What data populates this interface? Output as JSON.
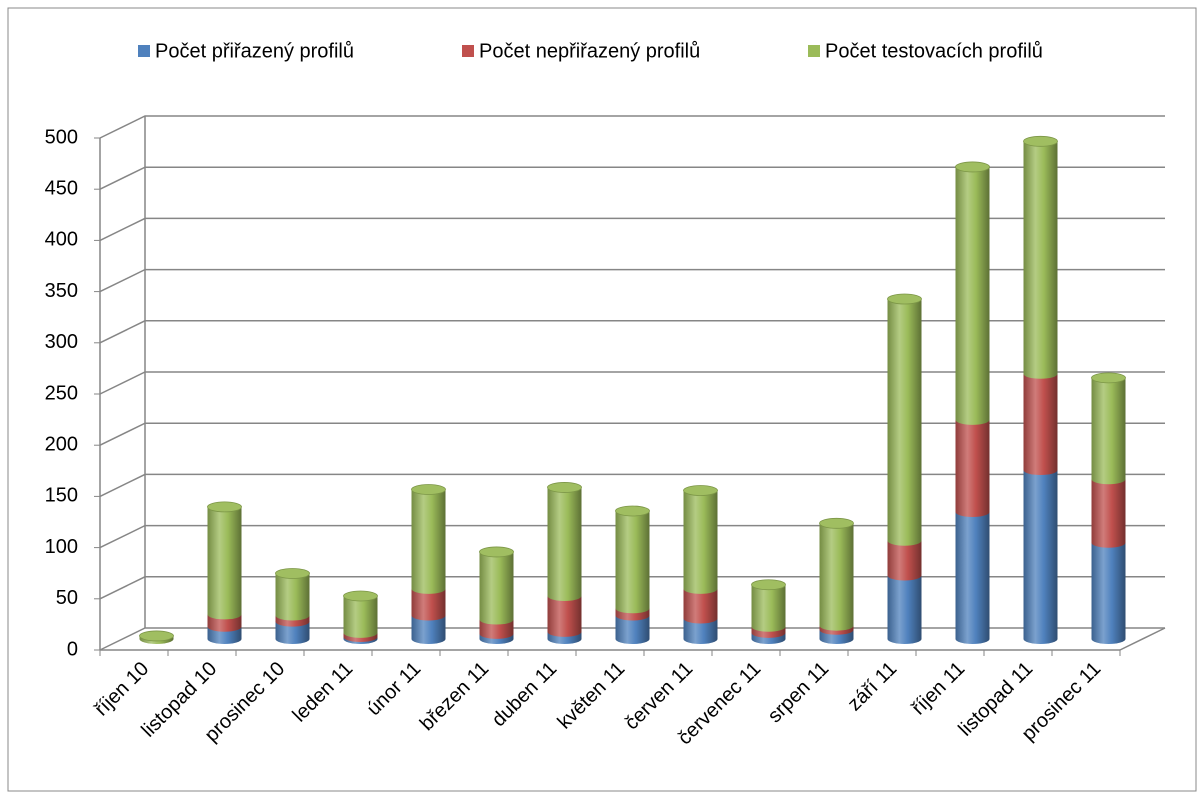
{
  "chart_data": {
    "type": "bar",
    "stacked": true,
    "categories": [
      "říjen 10",
      "listopad 10",
      "prosinec 10",
      "leden 11",
      "únor 11",
      "březen 11",
      "duben 11",
      "květen 11",
      "červen 11",
      "červenec 11",
      "srpen 11",
      "září 11",
      "říjen 11",
      "listopad 11",
      "prosinec 11"
    ],
    "series": [
      {
        "name": "Počet přiřazený profilů",
        "color": "#4f81bd",
        "values": [
          0,
          12,
          17,
          2,
          23,
          5,
          7,
          23,
          20,
          6,
          9,
          62,
          124,
          165,
          94
        ]
      },
      {
        "name": "Počet nepřiřazený profilů",
        "color": "#c0504d",
        "values": [
          0,
          12,
          6,
          4,
          26,
          14,
          35,
          7,
          29,
          6,
          4,
          34,
          90,
          94,
          62
        ]
      },
      {
        "name": "Počet testovacích profilů",
        "color": "#9bbb59",
        "values": [
          3,
          105,
          41,
          36,
          97,
          66,
          106,
          95,
          96,
          41,
          100,
          236,
          247,
          227,
          99
        ]
      }
    ],
    "ylim": [
      0,
      500
    ],
    "yticks": [
      0,
      50,
      100,
      150,
      200,
      250,
      300,
      350,
      400,
      450,
      500
    ],
    "grid": true,
    "legend": "top"
  }
}
